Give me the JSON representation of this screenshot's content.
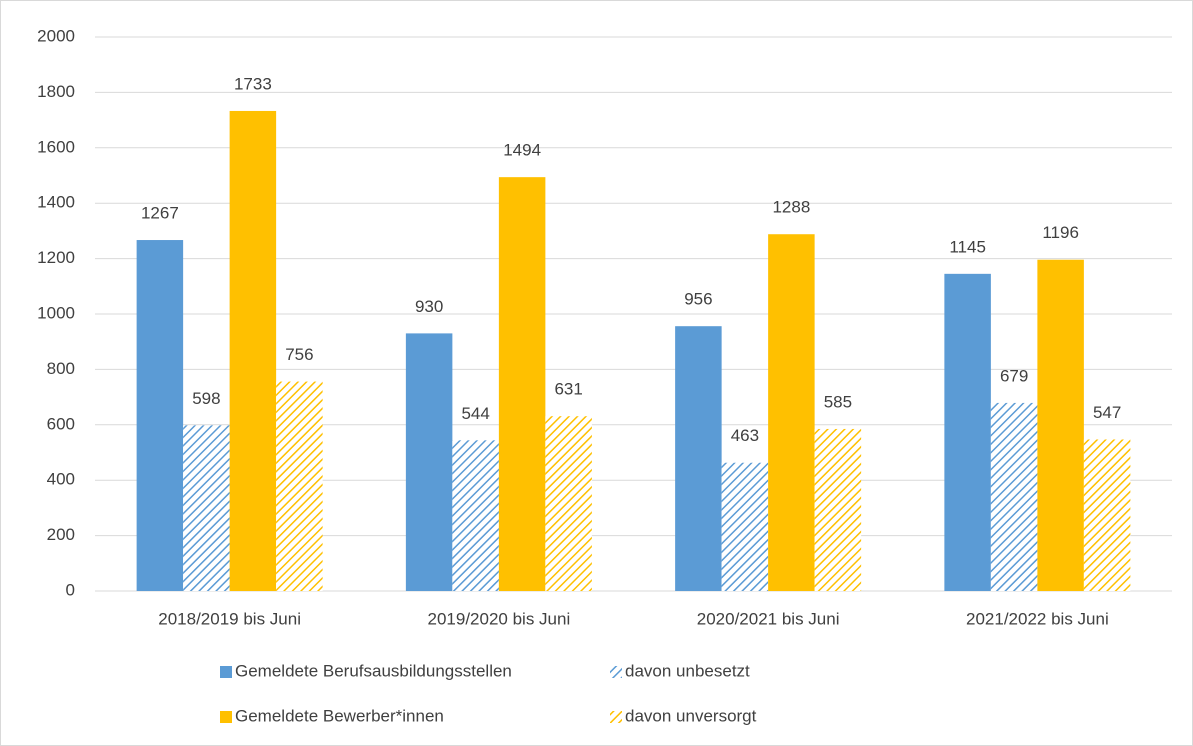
{
  "chart_data": {
    "type": "bar",
    "categories": [
      "2018/2019 bis Juni",
      "2019/2020 bis Juni",
      "2020/2021 bis Juni",
      "2021/2022 bis Juni"
    ],
    "series": [
      {
        "name": "Gemeldete Berufsausbildungsstellen",
        "color": "#5b9bd5",
        "pattern": "solid",
        "values": [
          1267,
          930,
          956,
          1145
        ]
      },
      {
        "name": "davon unbesetzt",
        "color": "#5b9bd5",
        "pattern": "hatch",
        "values": [
          598,
          544,
          463,
          679
        ]
      },
      {
        "name": "Gemeldete Bewerber*innen",
        "color": "#ffc000",
        "pattern": "solid",
        "values": [
          1733,
          1494,
          1288,
          1196
        ]
      },
      {
        "name": "davon unversorgt",
        "color": "#ffc000",
        "pattern": "hatch",
        "values": [
          756,
          631,
          585,
          547
        ]
      }
    ],
    "ylim": [
      0,
      2000
    ],
    "yticks": [
      0,
      200,
      400,
      600,
      800,
      1000,
      1200,
      1400,
      1600,
      1800,
      2000
    ],
    "grid": true,
    "legend": "bottom"
  }
}
